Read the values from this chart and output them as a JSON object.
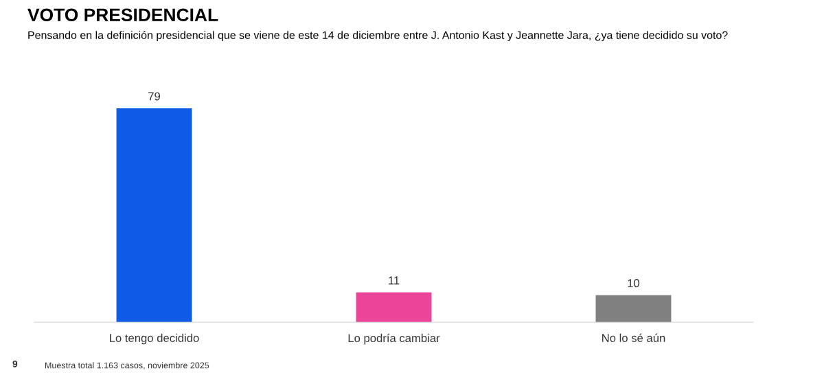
{
  "chart_data": {
    "type": "bar",
    "title": "VOTO PRESIDENCIAL",
    "subtitle": "Pensando en la definición presidencial que se viene de este 14 de diciembre entre J. Antonio Kast y Jeannette Jara, ¿ya tiene decidido su voto?",
    "categories": [
      "Lo tengo decidido",
      "Lo podría cambiar",
      "No lo sé aún"
    ],
    "values": [
      79,
      11,
      10
    ],
    "colors": [
      "#0f5be6",
      "#ea4599",
      "#808080"
    ],
    "data_labels": true,
    "grid": false,
    "legend": false,
    "relative": false,
    "annotations": [
      "9",
      "Muestra total 1.163 casos, noviembre 2025"
    ]
  }
}
